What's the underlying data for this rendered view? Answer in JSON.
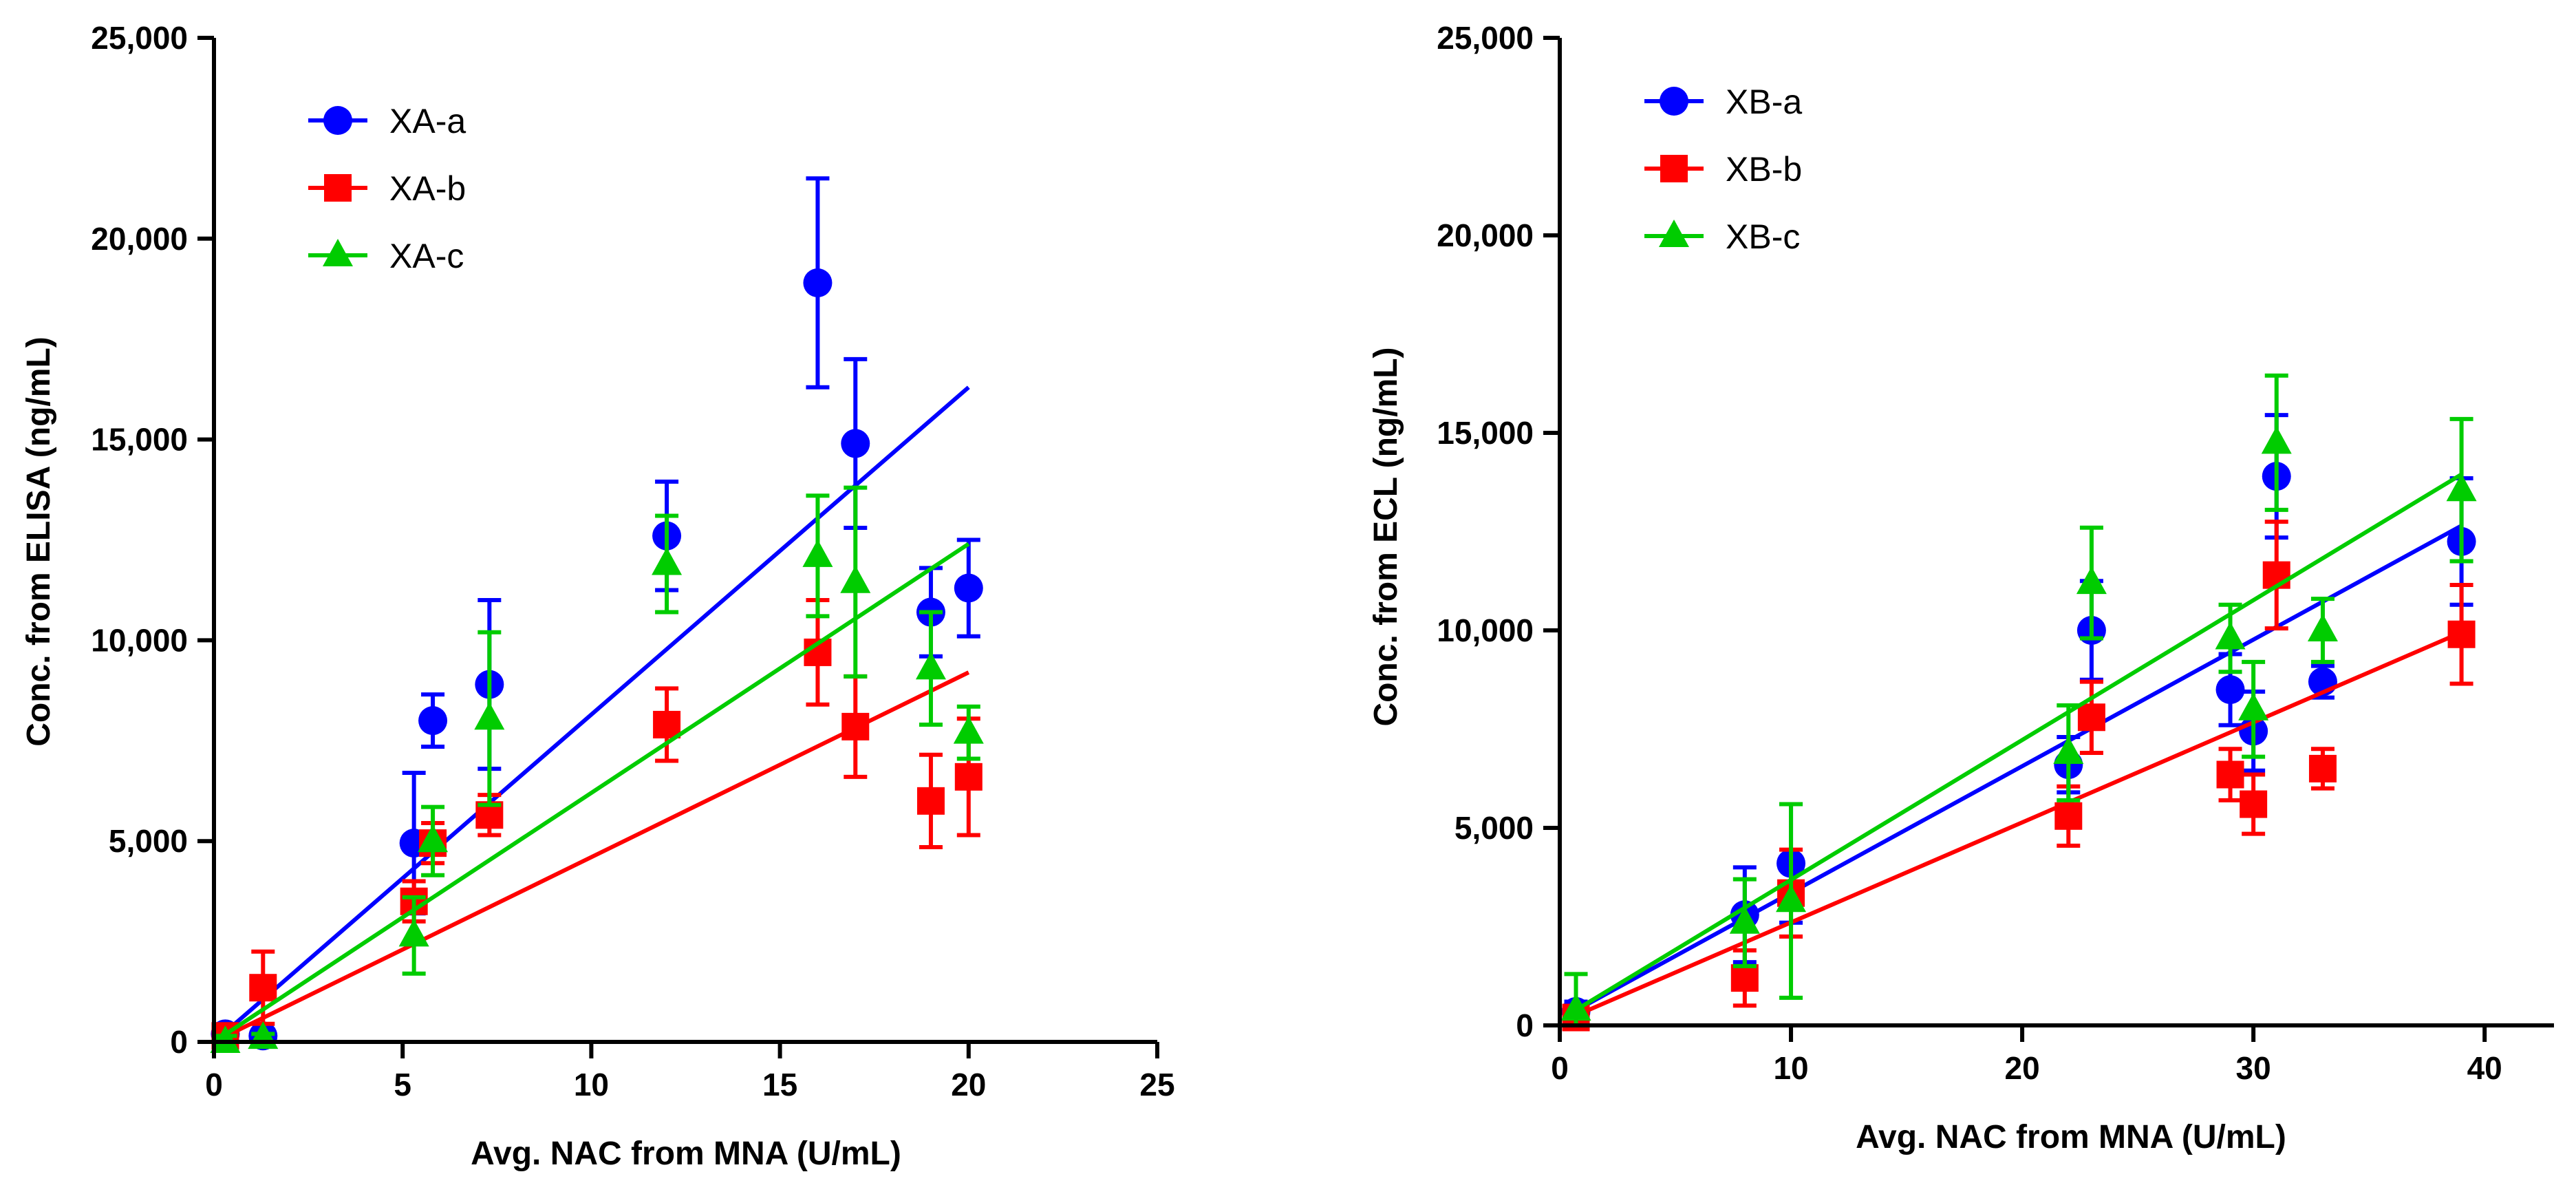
{
  "chart_data": [
    {
      "type": "scatter",
      "title": "",
      "xlabel": "Avg. NAC from MNA (U/mL)",
      "ylabel": "Conc. from ELISA  (ng/mL)",
      "xlim": [
        0,
        25
      ],
      "ylim": [
        0,
        25000
      ],
      "xticks": [
        0,
        5,
        10,
        15,
        20,
        25
      ],
      "xtick_labels": [
        "0",
        "5",
        "10",
        "15",
        "20",
        "25"
      ],
      "yticks": [
        0,
        5000,
        10000,
        15000,
        20000,
        25000
      ],
      "ytick_labels": [
        "0",
        "5,000",
        "10,000",
        "15,000",
        "20,000",
        "25,000"
      ],
      "legend_position": "top-left",
      "series": [
        {
          "name": "XA-a",
          "color": "#0000FF",
          "marker": "circle",
          "x": [
            0.3,
            1.3,
            5.3,
            5.8,
            7.3,
            12.0,
            16.0,
            17.0,
            19.0,
            20.0
          ],
          "y": [
            200,
            150,
            4950,
            8000,
            8900,
            12600,
            18900,
            14900,
            10700,
            11300
          ],
          "err": [
            100,
            100,
            1750,
            650,
            2100,
            1350,
            2600,
            2100,
            1100,
            1200
          ],
          "fit": {
            "x": [
              0,
              20
            ],
            "y": [
              0,
              16300
            ]
          }
        },
        {
          "name": "XA-b",
          "color": "#FF0000",
          "marker": "square",
          "x": [
            0.3,
            1.3,
            5.3,
            5.8,
            7.3,
            12.0,
            16.0,
            17.0,
            19.0,
            20.0
          ],
          "y": [
            150,
            1350,
            3500,
            4950,
            5650,
            7900,
            9700,
            7850,
            6000,
            6600
          ],
          "err": [
            100,
            900,
            500,
            500,
            500,
            900,
            1300,
            1250,
            1150,
            1450
          ],
          "fit": {
            "x": [
              0,
              20
            ],
            "y": [
              0,
              9200
            ]
          }
        },
        {
          "name": "XA-c",
          "color": "#00CC00",
          "marker": "triangle",
          "x": [
            0.3,
            1.3,
            5.3,
            5.8,
            7.3,
            12.0,
            16.0,
            17.0,
            19.0,
            20.0
          ],
          "y": [
            0,
            100,
            2650,
            5000,
            8050,
            11900,
            12100,
            11450,
            9300,
            7700
          ],
          "err": [
            150,
            100,
            950,
            850,
            2150,
            1200,
            1500,
            2350,
            1400,
            650
          ],
          "fit": {
            "x": [
              0,
              20
            ],
            "y": [
              0,
              12400
            ]
          }
        }
      ]
    },
    {
      "type": "scatter",
      "title": "",
      "xlabel": "Avg. NAC from MNA (U/mL)",
      "ylabel": "Conc. from ECL (ng/mL)",
      "xlim": [
        0,
        43
      ],
      "ylim": [
        0,
        25000
      ],
      "xticks": [
        0,
        10,
        20,
        30,
        40
      ],
      "xtick_labels": [
        "0",
        "10",
        "20",
        "30",
        "40"
      ],
      "yticks": [
        0,
        5000,
        10000,
        15000,
        20000,
        25000
      ],
      "ytick_labels": [
        "0",
        "5,000",
        "10,000",
        "15,000",
        "20,000",
        "25,000"
      ],
      "legend_position": "top-left",
      "series": [
        {
          "name": "XB-a",
          "color": "#0000FF",
          "marker": "circle",
          "x": [
            0.7,
            8,
            10,
            22,
            23,
            29,
            30,
            31,
            33,
            39
          ],
          "y": [
            350,
            2800,
            4100,
            6600,
            10000,
            8500,
            7450,
            13900,
            8700,
            12250
          ],
          "err": [
            250,
            1200,
            1500,
            700,
            1250,
            900,
            1000,
            1550,
            400,
            1600
          ],
          "fit": {
            "x": [
              0.3,
              39
            ],
            "y": [
              250,
              12650
            ]
          }
        },
        {
          "name": "XB-b",
          "color": "#FF0000",
          "marker": "square",
          "x": [
            0.7,
            8,
            10,
            22,
            23,
            29,
            30,
            31,
            33,
            39
          ],
          "y": [
            200,
            1200,
            3350,
            5300,
            7800,
            6350,
            5600,
            11400,
            6500,
            9900
          ],
          "err": [
            150,
            700,
            1100,
            750,
            900,
            650,
            750,
            1350,
            500,
            1250
          ],
          "fit": {
            "x": [
              0.3,
              39
            ],
            "y": [
              150,
              9950
            ]
          }
        },
        {
          "name": "XB-c",
          "color": "#00CC00",
          "marker": "triangle",
          "x": [
            0.7,
            8,
            10,
            22,
            23,
            29,
            30,
            31,
            33,
            39
          ],
          "y": [
            400,
            2600,
            3150,
            6900,
            11200,
            9800,
            8000,
            14750,
            10000,
            13550
          ],
          "err": [
            900,
            1100,
            2450,
            1200,
            1400,
            850,
            1200,
            1700,
            800,
            1800
          ],
          "fit": {
            "x": [
              0.3,
              39
            ],
            "y": [
              250,
              13950
            ]
          }
        }
      ]
    }
  ]
}
